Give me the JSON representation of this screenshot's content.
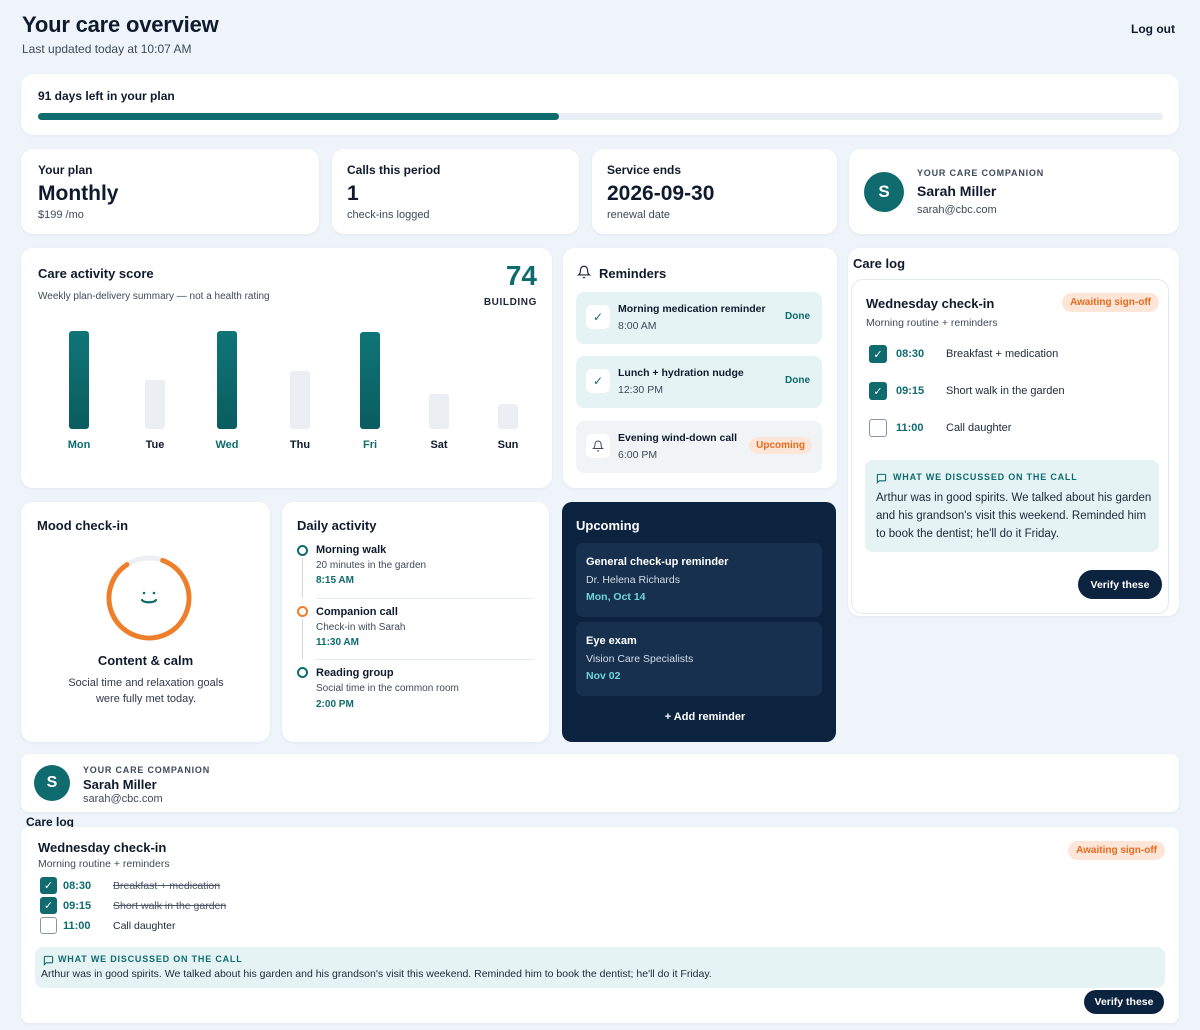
{
  "header": {
    "title": "Your care overview",
    "updated": "Last updated today at 10:07 AM",
    "logout": "Log out"
  },
  "plan_progress": {
    "label": "91 days left in your plan",
    "fraction": 0.463
  },
  "stats": {
    "plan": {
      "label": "Your plan",
      "value": "Monthly",
      "sub": "$199 /mo"
    },
    "calls": {
      "label": "Calls this period",
      "value": "1",
      "sub": "check-ins logged"
    },
    "service": {
      "label": "Service ends",
      "value": "2026-09-30",
      "sub": "renewal date"
    }
  },
  "companion": {
    "overline": "YOUR CARE COMPANION",
    "initial": "S",
    "name": "Sarah Miller",
    "email": "sarah@cbc.com"
  },
  "activity_score": {
    "title": "Care activity score",
    "subtitle": "Weekly plan-delivery summary — not a health rating",
    "score": "74",
    "status": "BUILDING"
  },
  "chart_data": {
    "type": "bar",
    "categories": [
      "Mon",
      "Tue",
      "Wed",
      "Thu",
      "Fri",
      "Sat",
      "Sun"
    ],
    "values": [
      100,
      50,
      100,
      59,
      99,
      36,
      26
    ],
    "highlight": [
      true,
      false,
      true,
      false,
      true,
      false,
      false
    ],
    "colors": {
      "high": "#0f6b6e",
      "low": "#ebeef2"
    },
    "ylim": [
      0,
      100
    ],
    "grid": false
  },
  "reminders": {
    "title": "Reminders",
    "items": [
      {
        "title": "Morning medication reminder",
        "time": "8:00 AM",
        "status": "Done"
      },
      {
        "title": "Lunch + hydration nudge",
        "time": "12:30 PM",
        "status": "Done"
      },
      {
        "title": "Evening wind-down call",
        "time": "6:00 PM",
        "status": "Upcoming"
      }
    ]
  },
  "care_log": {
    "title": "Care log",
    "entry_title": "Wednesday check-in",
    "entry_sub": "Morning routine + reminders",
    "badge": "Awaiting sign-off",
    "tasks": [
      {
        "time": "08:30",
        "name": "Breakfast + medication",
        "done": true
      },
      {
        "time": "09:15",
        "name": "Short walk in the garden",
        "done": true
      },
      {
        "time": "11:00",
        "name": "Call daughter",
        "done": false
      }
    ],
    "note_head": "WHAT WE DISCUSSED ON THE CALL",
    "note": "Arthur was in good spirits. We talked about his garden and his grandson's visit this weekend. Reminded him to book the dentist; he'll do it Friday.",
    "verify": "Verify these"
  },
  "mood": {
    "title": "Mood check-in",
    "state": "Content & calm",
    "desc": "Social time and relaxation goals were fully met today.",
    "level": 0.85
  },
  "daily": {
    "title": "Daily activity",
    "items": [
      {
        "title": "Morning walk",
        "sub": "20 minutes in the garden",
        "time": "8:15 AM",
        "color": "#0e6b6e"
      },
      {
        "title": "Companion call",
        "sub": "Check-in with Sarah",
        "time": "11:30 AM",
        "color": "#ef7e2a"
      },
      {
        "title": "Reading group",
        "sub": "Social time in the common room",
        "time": "2:00 PM",
        "color": "#0e6b6e"
      }
    ]
  },
  "upcoming": {
    "title": "Upcoming",
    "items": [
      {
        "title": "General check-up reminder",
        "who": "Dr. Helena Richards",
        "date": "Mon, Oct 14"
      },
      {
        "title": "Eye exam",
        "who": "Vision Care Specialists",
        "date": "Nov 02"
      }
    ],
    "add": "+ Add reminder"
  }
}
